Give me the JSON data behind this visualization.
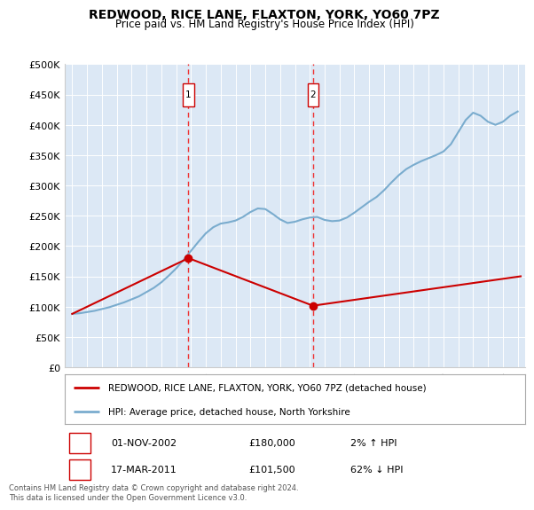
{
  "title": "REDWOOD, RICE LANE, FLAXTON, YORK, YO60 7PZ",
  "subtitle": "Price paid vs. HM Land Registry's House Price Index (HPI)",
  "legend_label_red": "REDWOOD, RICE LANE, FLAXTON, YORK, YO60 7PZ (detached house)",
  "legend_label_blue": "HPI: Average price, detached house, North Yorkshire",
  "footnote": "Contains HM Land Registry data © Crown copyright and database right 2024.\nThis data is licensed under the Open Government Licence v3.0.",
  "sale1_date": "01-NOV-2002",
  "sale1_price": "£180,000",
  "sale1_hpi": "2% ↑ HPI",
  "sale2_date": "17-MAR-2011",
  "sale2_price": "£101,500",
  "sale2_hpi": "62% ↓ HPI",
  "background_color": "#dce8f5",
  "ylim": [
    0,
    500000
  ],
  "yticks": [
    0,
    50000,
    100000,
    150000,
    200000,
    250000,
    300000,
    350000,
    400000,
    450000,
    500000
  ],
  "xlim_start": 1994.5,
  "xlim_end": 2025.5,
  "sale1_x": 2002.83,
  "sale1_y": 180000,
  "sale2_x": 2011.21,
  "sale2_y": 101500,
  "hpi_years": [
    1995,
    1995.5,
    1996,
    1996.5,
    1997,
    1997.5,
    1998,
    1998.5,
    1999,
    1999.5,
    2000,
    2000.5,
    2001,
    2001.5,
    2002,
    2002.5,
    2003,
    2003.5,
    2004,
    2004.5,
    2005,
    2005.5,
    2006,
    2006.5,
    2007,
    2007.5,
    2008,
    2008.5,
    2009,
    2009.5,
    2010,
    2010.5,
    2011,
    2011.5,
    2012,
    2012.5,
    2013,
    2013.5,
    2014,
    2014.5,
    2015,
    2015.5,
    2016,
    2016.5,
    2017,
    2017.5,
    2018,
    2018.5,
    2019,
    2019.5,
    2020,
    2020.5,
    2021,
    2021.5,
    2022,
    2022.5,
    2023,
    2023.5,
    2024,
    2024.5,
    2025
  ],
  "hpi_values": [
    88000,
    89000,
    91000,
    93000,
    96000,
    99000,
    103000,
    107000,
    112000,
    117000,
    124000,
    131000,
    140000,
    151000,
    163000,
    177000,
    192000,
    207000,
    221000,
    231000,
    237000,
    239000,
    242000,
    248000,
    256000,
    262000,
    261000,
    253000,
    244000,
    238000,
    240000,
    244000,
    247000,
    248000,
    243000,
    241000,
    242000,
    247000,
    255000,
    264000,
    273000,
    281000,
    292000,
    305000,
    317000,
    327000,
    334000,
    340000,
    345000,
    350000,
    356000,
    368000,
    388000,
    408000,
    420000,
    415000,
    405000,
    400000,
    405000,
    415000,
    422000
  ],
  "red_x": [
    1995,
    2002.83,
    2011.21,
    2025.2
  ],
  "red_y": [
    88000,
    180000,
    101500,
    150000
  ],
  "red_line_color": "#cc0000",
  "blue_line_color": "#7aacce",
  "sale_dot_color": "#cc0000",
  "vline_color": "#ee3333",
  "marker_box_color": "#cc0000"
}
